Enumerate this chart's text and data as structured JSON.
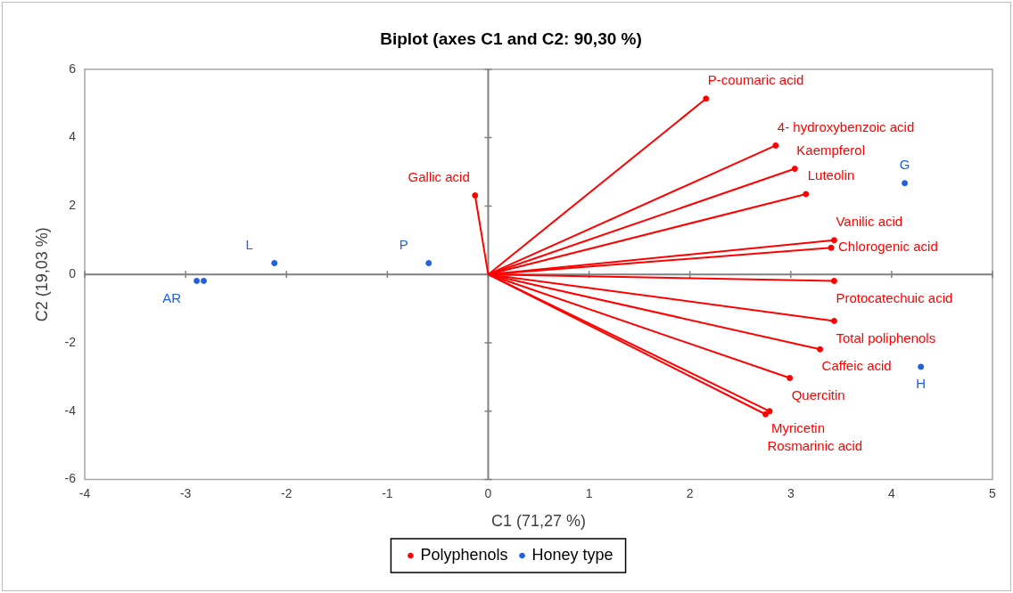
{
  "chart_data": {
    "type": "scatter",
    "title": "Biplot (axes C1 and C2: 90,30 %)",
    "xlabel": "C1 (71,27 %)",
    "ylabel": "C2 (19,03 %)",
    "xlim": [
      -4,
      5
    ],
    "xticks": [
      -4,
      -3,
      -2,
      -1,
      0,
      1,
      2,
      3,
      4,
      5
    ],
    "ylim": [
      -6,
      6
    ],
    "yticks": [
      -6,
      -4,
      -2,
      0,
      2,
      4,
      6
    ],
    "legend": "bottom",
    "series": [
      {
        "type": "line",
        "color": "#ff0000",
        "x": [
          0,
          2.16
        ],
        "values": [
          0,
          5.14
        ]
      },
      {
        "type": "line",
        "color": "#ff0000",
        "x": [
          0,
          2.85
        ],
        "values": [
          0,
          3.77
        ]
      },
      {
        "type": "line",
        "color": "#ff0000",
        "x": [
          0,
          3.04
        ],
        "values": [
          0,
          3.09
        ]
      },
      {
        "type": "line",
        "color": "#ff0000",
        "x": [
          0,
          3.15
        ],
        "values": [
          0,
          2.35
        ]
      },
      {
        "type": "line",
        "color": "#ff0000",
        "x": [
          0,
          3.43
        ],
        "values": [
          0,
          1.0
        ]
      },
      {
        "type": "line",
        "color": "#ff0000",
        "x": [
          0,
          3.4
        ],
        "values": [
          0,
          0.78
        ]
      },
      {
        "type": "line",
        "color": "#ff0000",
        "x": [
          0,
          3.43
        ],
        "values": [
          0,
          -0.19
        ]
      },
      {
        "type": "line",
        "color": "#ff0000",
        "x": [
          0,
          3.43
        ],
        "values": [
          0,
          -1.36
        ]
      },
      {
        "type": "line",
        "color": "#ff0000",
        "x": [
          0,
          3.29
        ],
        "values": [
          0,
          -2.19
        ]
      },
      {
        "type": "line",
        "color": "#ff0000",
        "x": [
          0,
          2.99
        ],
        "values": [
          0,
          -3.03
        ]
      },
      {
        "type": "line",
        "color": "#ff0000",
        "x": [
          0,
          2.79
        ],
        "values": [
          0,
          -4.0
        ]
      },
      {
        "type": "line",
        "color": "#ff0000",
        "x": [
          0,
          2.75
        ],
        "values": [
          0,
          -4.09
        ]
      },
      {
        "type": "line",
        "color": "#ff0000",
        "x": [
          0,
          -0.13
        ],
        "values": [
          0,
          2.31
        ]
      },
      {
        "name": "Polyphenols",
        "marker": "circle",
        "color": "#ff0000",
        "x": [
          2.16,
          2.85,
          3.04,
          3.15,
          3.43,
          3.4,
          3.43,
          3.43,
          3.29,
          2.99,
          2.79,
          2.75,
          -0.13
        ],
        "values": [
          5.14,
          3.77,
          3.09,
          2.35,
          1.0,
          0.78,
          -0.19,
          -1.36,
          -2.19,
          -3.03,
          -4.0,
          -4.09,
          2.31
        ]
      },
      {
        "name": "Honey type",
        "marker": "circle",
        "color": "#1f5fe0",
        "x": [
          4.13,
          4.29,
          -2.12,
          -0.59,
          -2.89,
          -2.82
        ],
        "values": [
          2.67,
          -2.7,
          0.33,
          0.33,
          -0.19,
          -0.19
        ]
      }
    ],
    "annotations": [
      {
        "text": "P-coumaric acid",
        "x": 2.16,
        "y": 5.14
      },
      {
        "text": "4- hydroxybenzoic acid",
        "x": 2.85,
        "y": 3.77
      },
      {
        "text": "Kaempferol",
        "x": 3.04,
        "y": 3.09
      },
      {
        "text": "Luteolin",
        "x": 3.15,
        "y": 2.35
      },
      {
        "text": "Vanilic acid",
        "x": 3.43,
        "y": 1.0
      },
      {
        "text": "Chlorogenic acid",
        "x": 3.4,
        "y": 0.78
      },
      {
        "text": "Protocatechuic acid",
        "x": 3.43,
        "y": -0.19
      },
      {
        "text": "Total poliphenols",
        "x": 3.43,
        "y": -1.36
      },
      {
        "text": "Caffeic acid",
        "x": 3.29,
        "y": -2.19
      },
      {
        "text": "Quercitin",
        "x": 2.99,
        "y": -3.03
      },
      {
        "text": "Myricetin",
        "x": 2.79,
        "y": -4.0
      },
      {
        "text": "Rosmarinic acid",
        "x": 2.75,
        "y": -4.09
      },
      {
        "text": "Gallic acid",
        "x": -0.13,
        "y": 2.31
      },
      {
        "text": "G",
        "x": 4.13,
        "y": 2.67
      },
      {
        "text": "H",
        "x": 4.29,
        "y": -2.7
      },
      {
        "text": "L",
        "x": -2.12,
        "y": 0.33
      },
      {
        "text": "P",
        "x": -0.59,
        "y": 0.33
      },
      {
        "text": "AR",
        "x": -2.89,
        "y": -0.19
      }
    ]
  }
}
